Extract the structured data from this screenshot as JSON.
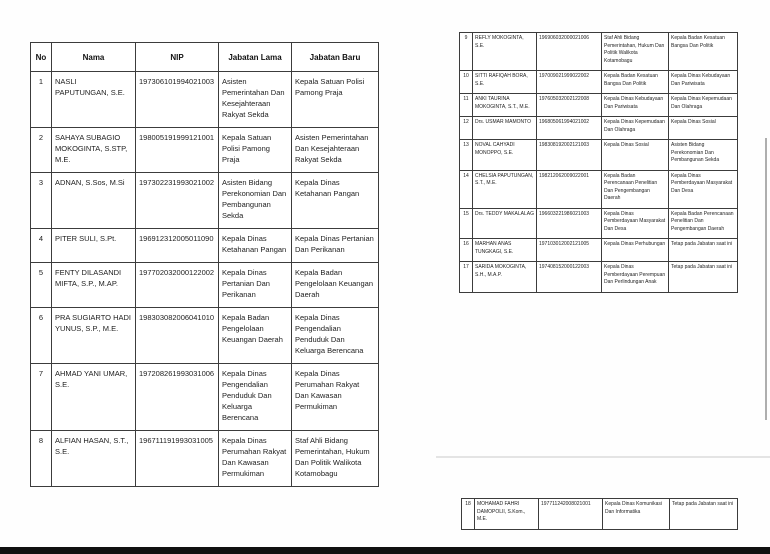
{
  "document": {
    "left_page_table": {
      "headers": [
        "No",
        "Nama",
        "NIP",
        "Jabatan Lama",
        "Jabatan Baru"
      ],
      "rows": [
        {
          "no": "1",
          "nama": "NASLI PAPUTUNGAN, S.E.",
          "nip": "197306101994021003",
          "jabatan_lama": "Asisten Pemerintahan Dan Kesejahteraan Rakyat Sekda",
          "jabatan_baru": "Kepala Satuan Polisi Pamong Praja"
        },
        {
          "no": "2",
          "nama": "SAHAYA SUBAGIO MOKOGINTA, S.STP, M.E.",
          "nip": "198005191999121001",
          "jabatan_lama": "Kepala Satuan Polisi Pamong Praja",
          "jabatan_baru": "Asisten Pemerintahan Dan Kesejahteraan Rakyat Sekda"
        },
        {
          "no": "3",
          "nama": "ADNAN, S.Sos, M.Si",
          "nip": "197302231993021002",
          "jabatan_lama": "Asisten Bidang Perekonomian Dan Pembangunan Sekda",
          "jabatan_baru": "Kepala Dinas Ketahanan Pangan"
        },
        {
          "no": "4",
          "nama": "PITER SULI, S.Pt.",
          "nip": "196912312005011090",
          "jabatan_lama": "Kepala Dinas Ketahanan Pangan",
          "jabatan_baru": "Kepala Dinas Pertanian Dan Perikanan"
        },
        {
          "no": "5",
          "nama": "FENTY DILASANDI MIFTA, S.P., M.AP.",
          "nip": "197702032000122002",
          "jabatan_lama": "Kepala Dinas Pertanian Dan Perikanan",
          "jabatan_baru": "Kepala Badan Pengelolaan Keuangan Daerah"
        },
        {
          "no": "6",
          "nama": "PRA SUGIARTO HADI YUNUS, S.P., M.E.",
          "nip": "198303082006041010",
          "jabatan_lama": "Kepala Badan Pengelolaan Keuangan Daerah",
          "jabatan_baru": "Kepala Dinas Pengendalian Penduduk Dan Keluarga Berencana"
        },
        {
          "no": "7",
          "nama": "AHMAD YANI UMAR, S.E.",
          "nip": "197208261993031006",
          "jabatan_lama": "Kepala Dinas Pengendalian Penduduk Dan Keluarga Berencana",
          "jabatan_baru": "Kepala Dinas Perumahan Rakyat Dan Kawasan Permukiman"
        },
        {
          "no": "8",
          "nama": "ALFIAN HASAN, S.T., S.E.",
          "nip": "196711191993031005",
          "jabatan_lama": "Kepala Dinas Perumahan Rakyat Dan Kawasan Permukiman",
          "jabatan_baru": "Staf Ahli Bidang Pemerintahan, Hukum Dan Politik Walikota Kotamobagu"
        }
      ]
    },
    "right_page_table": {
      "rows": [
        {
          "no": "9",
          "nama": "REFLY MOKOGINTA, S.E.",
          "nip": "196906032000021006",
          "jabatan_lama": "Staf Ahli Bidang Pemerintahan, Hukum Dan Politik Walikota Kotamobagu",
          "jabatan_baru": "Kepala Badan Kesatuan Bangsa Dan Politik"
        },
        {
          "no": "10",
          "nama": "SITTI RAFIQAH BORA, S.E.",
          "nip": "197009021999022002",
          "jabatan_lama": "Kepala Badan Kesatuan Bangsa Dan Politik",
          "jabatan_baru": "Kepala Dinas Kebudayaan Dan Pariwisata"
        },
        {
          "no": "11",
          "nama": "ANKI TAURINA MOKOGINTA, S.T., M.E.",
          "nip": "197605032002122008",
          "jabatan_lama": "Kepala Dinas Kebudayaan Dan Pariwisata",
          "jabatan_baru": "Kepala Dinas Kepemudaan Dan Olahraga"
        },
        {
          "no": "12",
          "nama": "Drs. USMAR MAMONTO",
          "nip": "196805061994021002",
          "jabatan_lama": "Kepala Dinas Kepemudaan Dan Olahraga",
          "jabatan_baru": "Kepala Dinas Sosial"
        },
        {
          "no": "13",
          "nama": "NOVAL CAHYADI MONOPPO, S.E.",
          "nip": "198308192002121003",
          "jabatan_lama": "Kepala Dinas Sosial",
          "jabatan_baru": "Asisten Bidang Perekonomian Dan Pembangunan Sekda"
        },
        {
          "no": "14",
          "nama": "CHELSIA PAPUTUNGAN, S.T., M.E.",
          "nip": "198212062009022001",
          "jabatan_lama": "Kepala Badan Perencanaan Penelitian Dan Pengembangan Daerah",
          "jabatan_baru": "Kepala Dinas Pemberdayaan Masyarakat Dan Desa"
        },
        {
          "no": "15",
          "nama": "Drs. TEDDY MAKALALAG",
          "nip": "196603221986021003",
          "jabatan_lama": "Kepala Dinas Pemberdayaan Masyarakat Dan Desa",
          "jabatan_baru": "Kepala Badan Perencanaan Penelitian Dan Pengembangan Daerah"
        },
        {
          "no": "16",
          "nama": "MARHAN ANAS TUNGKAGI, S.E.",
          "nip": "197103012002121005",
          "jabatan_lama": "Kepala Dinas Perhubungan",
          "jabatan_baru": "Tetap pada Jabatan saat ini"
        },
        {
          "no": "17",
          "nama": "SARIDA MOKOGINTA, S.H., M.A.P.",
          "nip": "197408152000122003",
          "jabatan_lama": "Kepala Dinas Pemberdayaan Perempuan Dan Perlindungan Anak",
          "jabatan_baru": "Tetap pada Jabatan saat ini"
        }
      ]
    },
    "footer_page_table": {
      "rows": [
        {
          "no": "18",
          "nama": "MOHAMAD FAHRI DAMOPOLII, S.Kom., M.E.",
          "nip": "197711242008021001",
          "jabatan_lama": "Kepala Dinas Komunikasi Dan Informatika",
          "jabatan_baru": "Tetap pada Jabatan saat ini"
        }
      ]
    },
    "colors": {
      "table_border": "#3c3c3c",
      "text": "#1d1d1d",
      "bottom_bar": "#101010",
      "page_break_line": "#e4e4e4",
      "page_edge_line": "#aeaeae"
    }
  }
}
